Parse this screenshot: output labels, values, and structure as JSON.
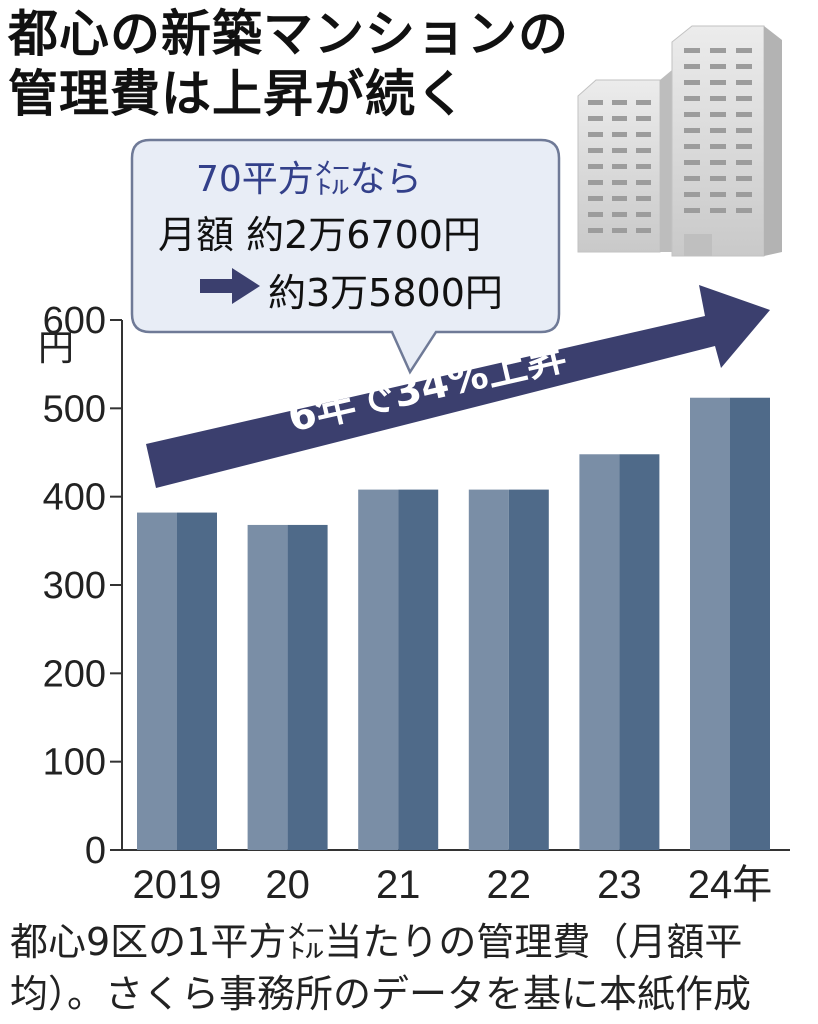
{
  "title": {
    "line1": "都心の新築マンションの",
    "line2": "管理費は上昇が続く"
  },
  "callout": {
    "condition": "70平方㍍なら",
    "from_text": "月額 約2万6700円",
    "to_text": "約3万5800円"
  },
  "arrow_label": "6年で34%上昇",
  "colors": {
    "bar_light": "#7a8ea6",
    "bar_dark": "#4f6a89",
    "arrow": "#3b3f6e",
    "callout_bg": "#e8edf6",
    "callout_border": "#6f7a97",
    "building_light": "#d4d4d4",
    "building_shade": "#b5b5b5"
  },
  "icons": [
    "building-icon",
    "right-arrow-icon",
    "trend-arrow-icon"
  ],
  "chart_data": {
    "type": "bar",
    "categories": [
      "2019",
      "20",
      "21",
      "22",
      "23",
      "24年"
    ],
    "values": [
      382,
      368,
      408,
      408,
      448,
      512
    ],
    "ylabel": "円",
    "ylim": [
      0,
      600
    ],
    "yticks": [
      "0",
      "100",
      "200",
      "300",
      "400",
      "500",
      "600"
    ],
    "grid": false,
    "annotation": "6年で34%上昇"
  },
  "note": {
    "line1": "都心9区の1平方㍍当たりの管理費（月額平",
    "line2": "均）。さくら事務所のデータを基に本紙作成"
  }
}
